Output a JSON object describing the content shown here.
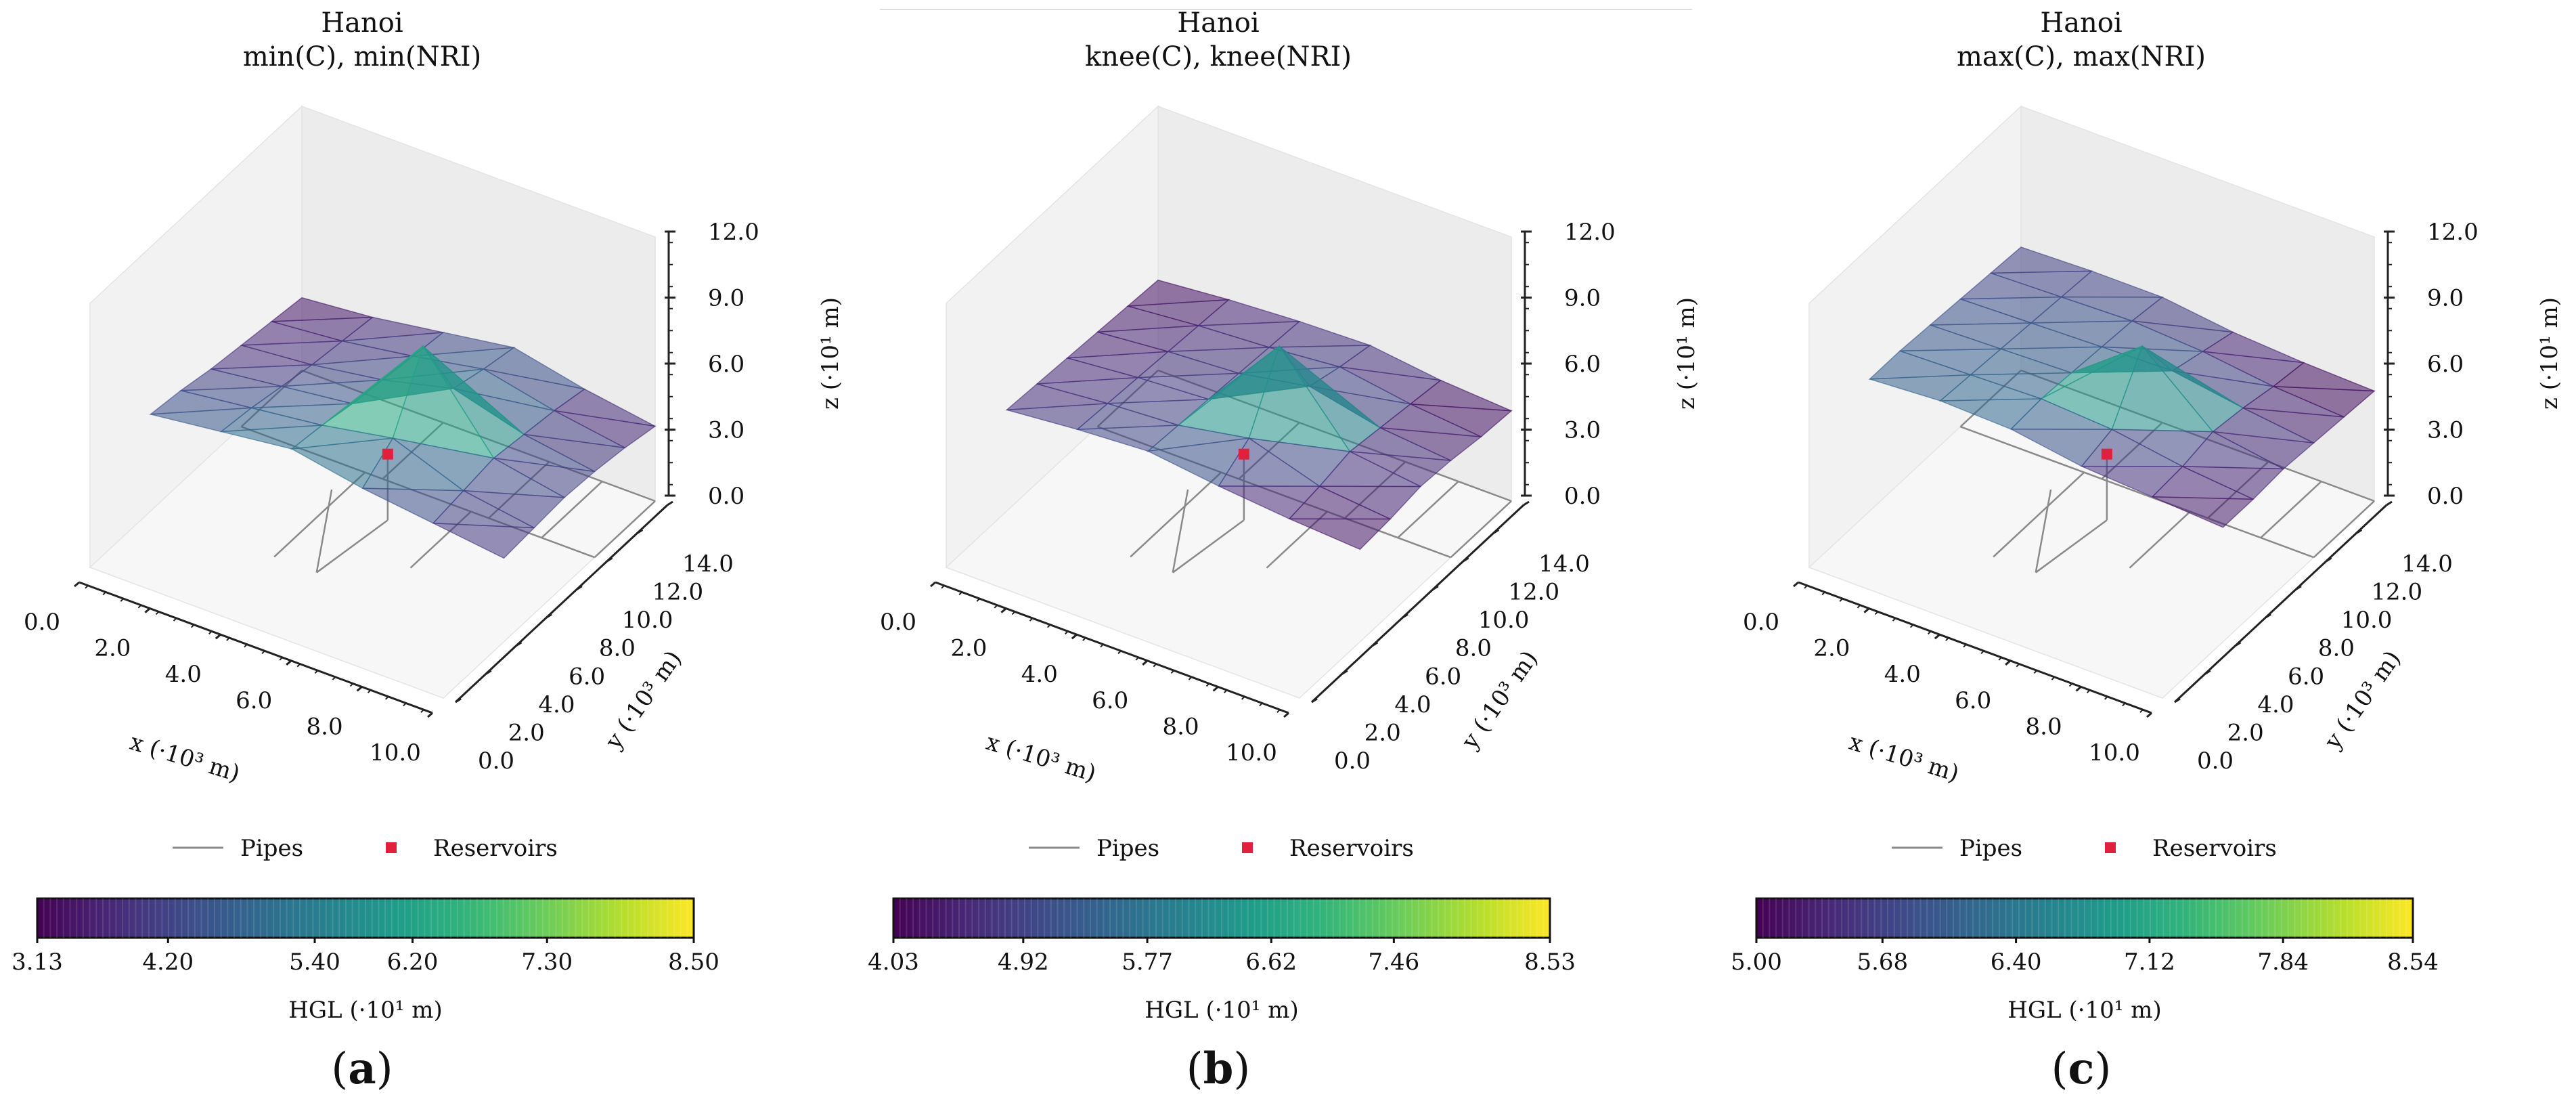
{
  "chart_data": [
    {
      "type": "surface3d",
      "letter": "a",
      "title": [
        "Hanoi",
        "min(C), min(NRI)"
      ],
      "xlabel": "x (·10³ m)",
      "ylabel": "y (·10³ m)",
      "zlabel": "z (·10¹ m)",
      "x_ticks": [
        "0.0",
        "2.0",
        "4.0",
        "6.0",
        "8.0",
        "10.0"
      ],
      "y_ticks": [
        "0.0",
        "2.0",
        "4.0",
        "6.0",
        "8.0",
        "10.0",
        "12.0",
        "14.0"
      ],
      "z_ticks": [
        "0.0",
        "3.0",
        "6.0",
        "9.0",
        "12.0"
      ],
      "xlim": [
        0,
        10
      ],
      "ylim": [
        0,
        14
      ],
      "zlim": [
        0,
        12
      ],
      "legend": [
        "Pipes",
        "Reservoirs"
      ],
      "colorbar_label": "HGL (·10¹ m)",
      "colorbar_ticks": [
        "3.13",
        "4.20",
        "5.40",
        "6.20",
        "7.30",
        "8.50"
      ],
      "colorbar_tick_values": [
        3.13,
        4.2,
        5.4,
        6.2,
        7.3,
        8.5
      ],
      "colorbar_range": [
        3.13,
        8.5
      ],
      "reservoir": {
        "x": 5.0,
        "y": 8.0,
        "z": 3.0
      },
      "pipes_color": "#8a8a8a",
      "reservoir_color": "#e0203c"
    },
    {
      "type": "surface3d",
      "letter": "b",
      "title": [
        "Hanoi",
        "knee(C), knee(NRI)"
      ],
      "xlabel": "x (·10³ m)",
      "ylabel": "y (·10³ m)",
      "zlabel": "z (·10¹ m)",
      "x_ticks": [
        "0.0",
        "2.0",
        "4.0",
        "6.0",
        "8.0",
        "10.0"
      ],
      "y_ticks": [
        "0.0",
        "2.0",
        "4.0",
        "6.0",
        "8.0",
        "10.0",
        "12.0",
        "14.0"
      ],
      "z_ticks": [
        "0.0",
        "3.0",
        "6.0",
        "9.0",
        "12.0"
      ],
      "xlim": [
        0,
        10
      ],
      "ylim": [
        0,
        14
      ],
      "zlim": [
        0,
        12
      ],
      "legend": [
        "Pipes",
        "Reservoirs"
      ],
      "colorbar_label": "HGL (·10¹ m)",
      "colorbar_ticks": [
        "4.03",
        "4.92",
        "5.77",
        "6.62",
        "7.46",
        "8.53"
      ],
      "colorbar_tick_values": [
        4.03,
        4.92,
        5.77,
        6.62,
        7.46,
        8.53
      ],
      "colorbar_range": [
        4.03,
        8.53
      ],
      "reservoir": {
        "x": 5.0,
        "y": 8.0,
        "z": 3.0
      },
      "pipes_color": "#8a8a8a",
      "reservoir_color": "#e0203c"
    },
    {
      "type": "surface3d",
      "letter": "c",
      "title": [
        "Hanoi",
        "max(C), max(NRI)"
      ],
      "xlabel": "x (·10³ m)",
      "ylabel": "y (·10³ m)",
      "zlabel": "z (·10¹ m)",
      "x_ticks": [
        "0.0",
        "2.0",
        "4.0",
        "6.0",
        "8.0",
        "10.0"
      ],
      "y_ticks": [
        "0.0",
        "2.0",
        "4.0",
        "6.0",
        "8.0",
        "10.0",
        "12.0",
        "14.0"
      ],
      "z_ticks": [
        "0.0",
        "3.0",
        "6.0",
        "9.0",
        "12.0"
      ],
      "xlim": [
        0,
        10
      ],
      "ylim": [
        0,
        14
      ],
      "zlim": [
        0,
        12
      ],
      "legend": [
        "Pipes",
        "Reservoirs"
      ],
      "colorbar_label": "HGL (·10¹ m)",
      "colorbar_ticks": [
        "5.00",
        "5.68",
        "6.40",
        "7.12",
        "7.84",
        "8.54"
      ],
      "colorbar_tick_values": [
        5.0,
        5.68,
        6.4,
        7.12,
        7.84,
        8.54
      ],
      "colorbar_range": [
        5.0,
        8.54
      ],
      "reservoir": {
        "x": 5.0,
        "y": 8.0,
        "z": 3.0
      },
      "pipes_color": "#8a8a8a",
      "reservoir_color": "#e0203c"
    }
  ]
}
